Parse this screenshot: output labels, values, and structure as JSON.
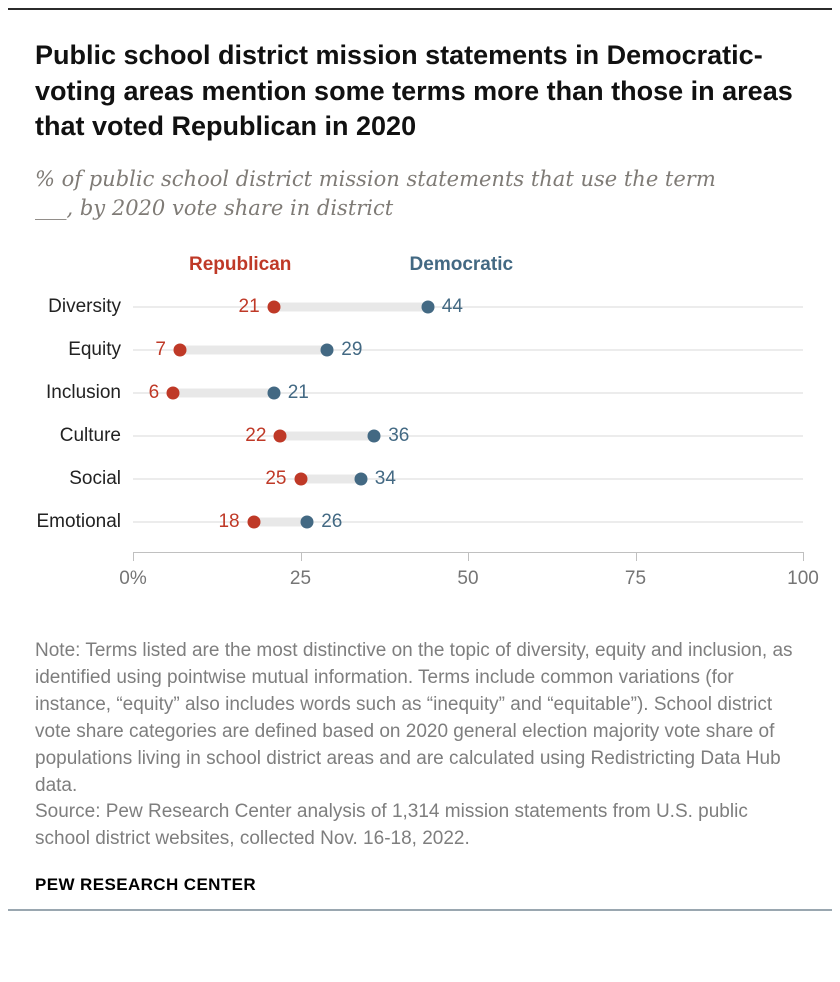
{
  "header": {
    "title": "Public school district mission statements in Democratic-voting areas mention some terms more than those in areas that voted Republican in 2020",
    "subtitle": "% of public school district mission statements that use the term ___, by 2020 vote share in district"
  },
  "chart_data": {
    "type": "dot-plot",
    "categories": [
      "Diversity",
      "Equity",
      "Inclusion",
      "Culture",
      "Social",
      "Emotional"
    ],
    "series": [
      {
        "name": "Republican",
        "color": "#bf3927",
        "values": [
          21,
          7,
          6,
          22,
          25,
          18
        ]
      },
      {
        "name": "Democratic",
        "color": "#436983",
        "values": [
          44,
          29,
          21,
          36,
          34,
          26
        ]
      }
    ],
    "xlim": [
      0,
      100
    ],
    "x_ticks": [
      {
        "value": 0,
        "label": "0%"
      },
      {
        "value": 25,
        "label": "25"
      },
      {
        "value": 50,
        "label": "50"
      },
      {
        "value": 75,
        "label": "75"
      },
      {
        "value": 100,
        "label": "100"
      }
    ],
    "legend_position": "top",
    "grid": "horizontal-row-lines",
    "connector_color": "#e8e8e8"
  },
  "footer": {
    "note": "Note: Terms listed are the most distinctive on the topic of diversity, equity and inclusion, as identified using pointwise mutual information. Terms include common variations (for instance, “equity” also includes words such as “inequity” and “equitable”). School district vote share categories are defined based on 2020 general election majority vote share of populations living in school district areas and are calculated using Redistricting Data Hub data.",
    "source": "Source: Pew Research Center analysis of 1,314 mission statements from U.S. public school district websites, collected Nov. 16-18, 2022.",
    "brand": "PEW RESEARCH CENTER"
  }
}
